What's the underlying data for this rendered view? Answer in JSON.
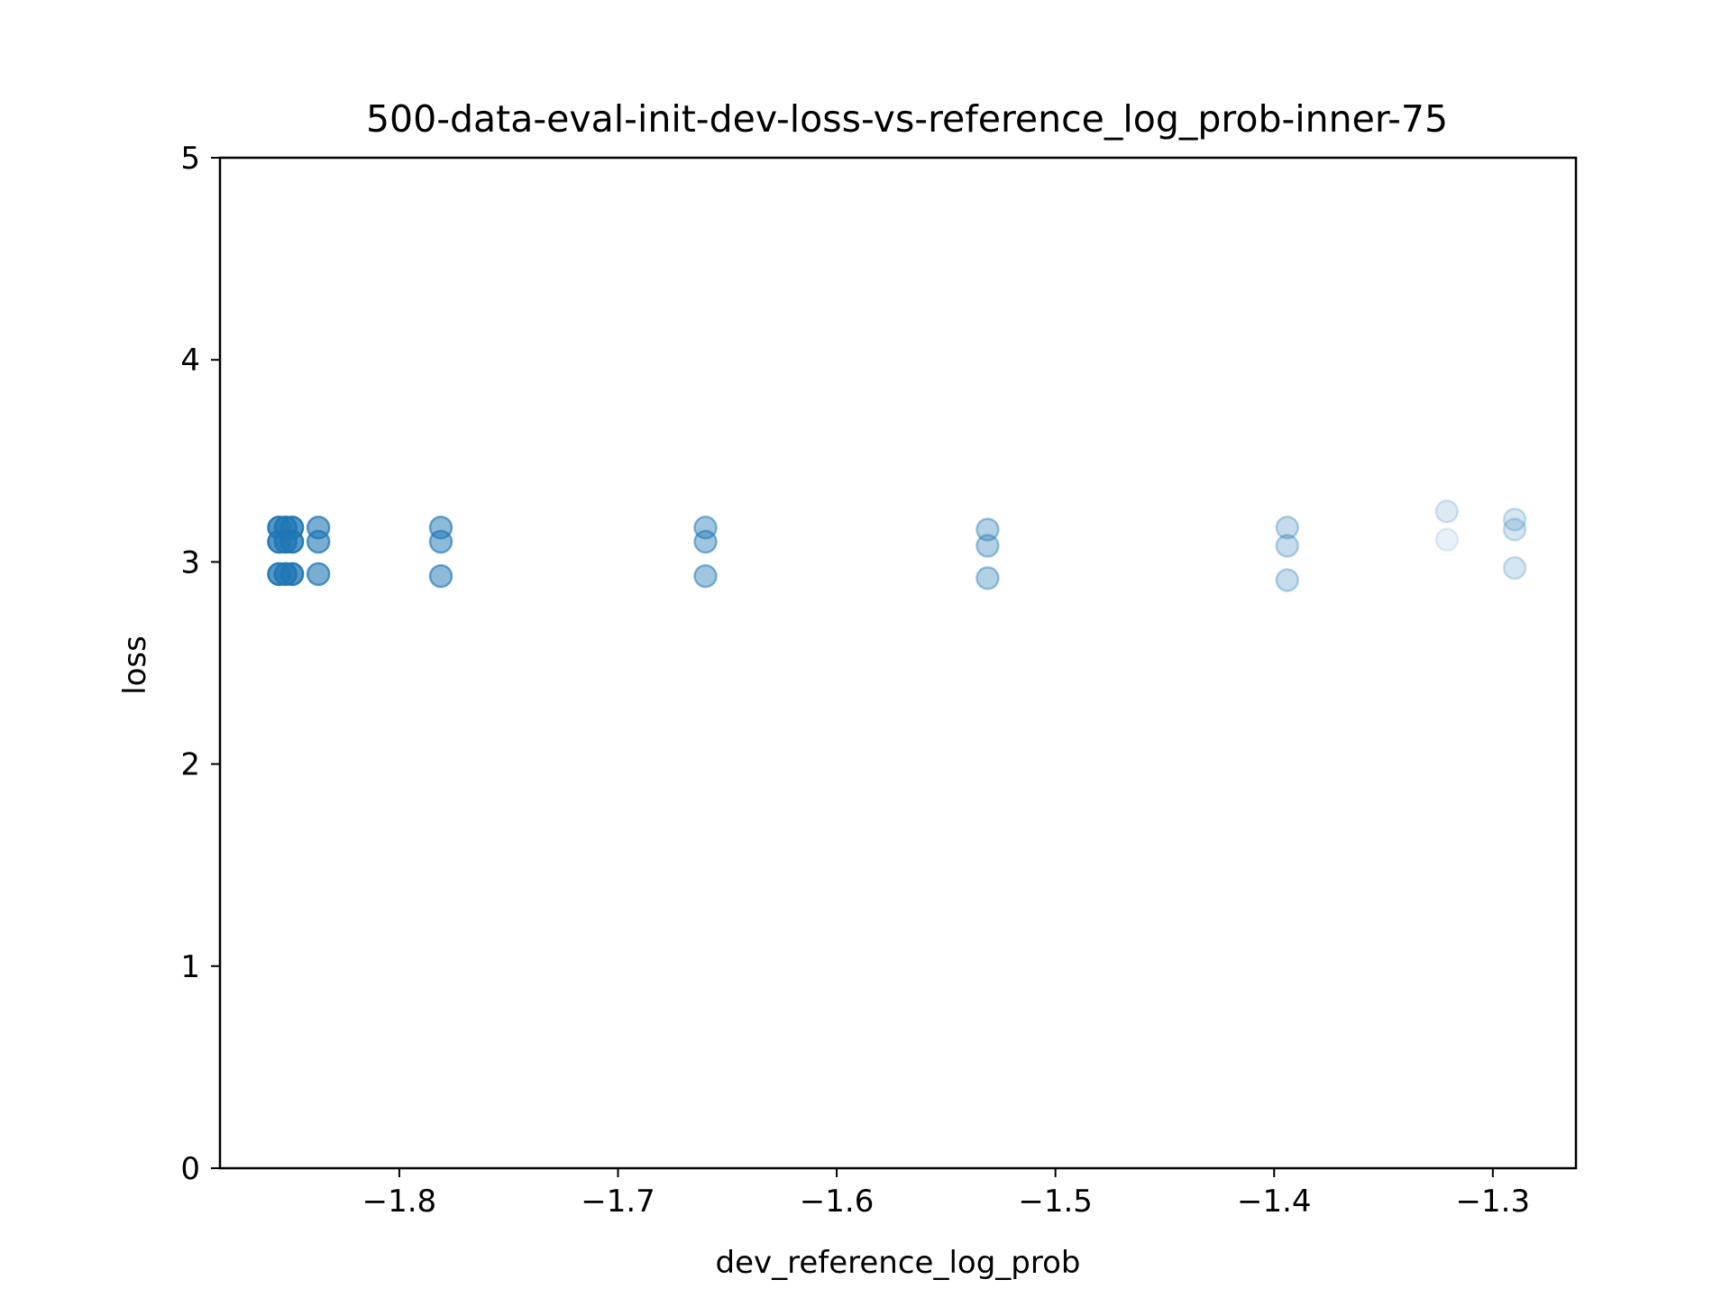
{
  "chart_data": {
    "type": "scatter",
    "title": "500-data-eval-init-dev-loss-vs-reference_log_prob-inner-75",
    "xlabel": "dev_reference_log_prob",
    "ylabel": "loss",
    "xlim": [
      -1.882,
      -1.262
    ],
    "ylim": [
      0,
      5
    ],
    "x_ticks": [
      -1.8,
      -1.7,
      -1.6,
      -1.5,
      -1.4,
      -1.3
    ],
    "x_tick_labels": [
      "−1.8",
      "−1.7",
      "−1.6",
      "−1.5",
      "−1.4",
      "−1.3"
    ],
    "y_ticks": [
      0,
      1,
      2,
      3,
      4,
      5
    ],
    "y_tick_labels": [
      "0",
      "1",
      "2",
      "3",
      "4",
      "5"
    ],
    "grid": false,
    "marker_color": "#1f77b4",
    "points": [
      {
        "x": -1.855,
        "y": 3.17,
        "alpha": 0.9
      },
      {
        "x": -1.852,
        "y": 3.17,
        "alpha": 0.9
      },
      {
        "x": -1.849,
        "y": 3.17,
        "alpha": 0.9
      },
      {
        "x": -1.855,
        "y": 3.1,
        "alpha": 0.9
      },
      {
        "x": -1.852,
        "y": 3.1,
        "alpha": 0.9
      },
      {
        "x": -1.849,
        "y": 3.1,
        "alpha": 0.9
      },
      {
        "x": -1.855,
        "y": 2.94,
        "alpha": 0.9
      },
      {
        "x": -1.852,
        "y": 2.94,
        "alpha": 0.9
      },
      {
        "x": -1.849,
        "y": 2.94,
        "alpha": 0.9
      },
      {
        "x": -1.837,
        "y": 3.17,
        "alpha": 0.7
      },
      {
        "x": -1.837,
        "y": 3.1,
        "alpha": 0.7
      },
      {
        "x": -1.837,
        "y": 2.94,
        "alpha": 0.7
      },
      {
        "x": -1.781,
        "y": 3.17,
        "alpha": 0.6
      },
      {
        "x": -1.781,
        "y": 3.1,
        "alpha": 0.6
      },
      {
        "x": -1.781,
        "y": 2.93,
        "alpha": 0.6
      },
      {
        "x": -1.66,
        "y": 3.17,
        "alpha": 0.5
      },
      {
        "x": -1.66,
        "y": 3.1,
        "alpha": 0.5
      },
      {
        "x": -1.66,
        "y": 2.93,
        "alpha": 0.5
      },
      {
        "x": -1.531,
        "y": 3.16,
        "alpha": 0.4
      },
      {
        "x": -1.531,
        "y": 3.08,
        "alpha": 0.4
      },
      {
        "x": -1.531,
        "y": 2.92,
        "alpha": 0.4
      },
      {
        "x": -1.394,
        "y": 3.17,
        "alpha": 0.3
      },
      {
        "x": -1.394,
        "y": 3.08,
        "alpha": 0.3
      },
      {
        "x": -1.394,
        "y": 2.91,
        "alpha": 0.3
      },
      {
        "x": -1.321,
        "y": 3.25,
        "alpha": 0.18
      },
      {
        "x": -1.321,
        "y": 3.11,
        "alpha": 0.12
      },
      {
        "x": -1.29,
        "y": 3.21,
        "alpha": 0.22
      },
      {
        "x": -1.29,
        "y": 3.16,
        "alpha": 0.22
      },
      {
        "x": -1.29,
        "y": 2.97,
        "alpha": 0.22
      }
    ]
  }
}
